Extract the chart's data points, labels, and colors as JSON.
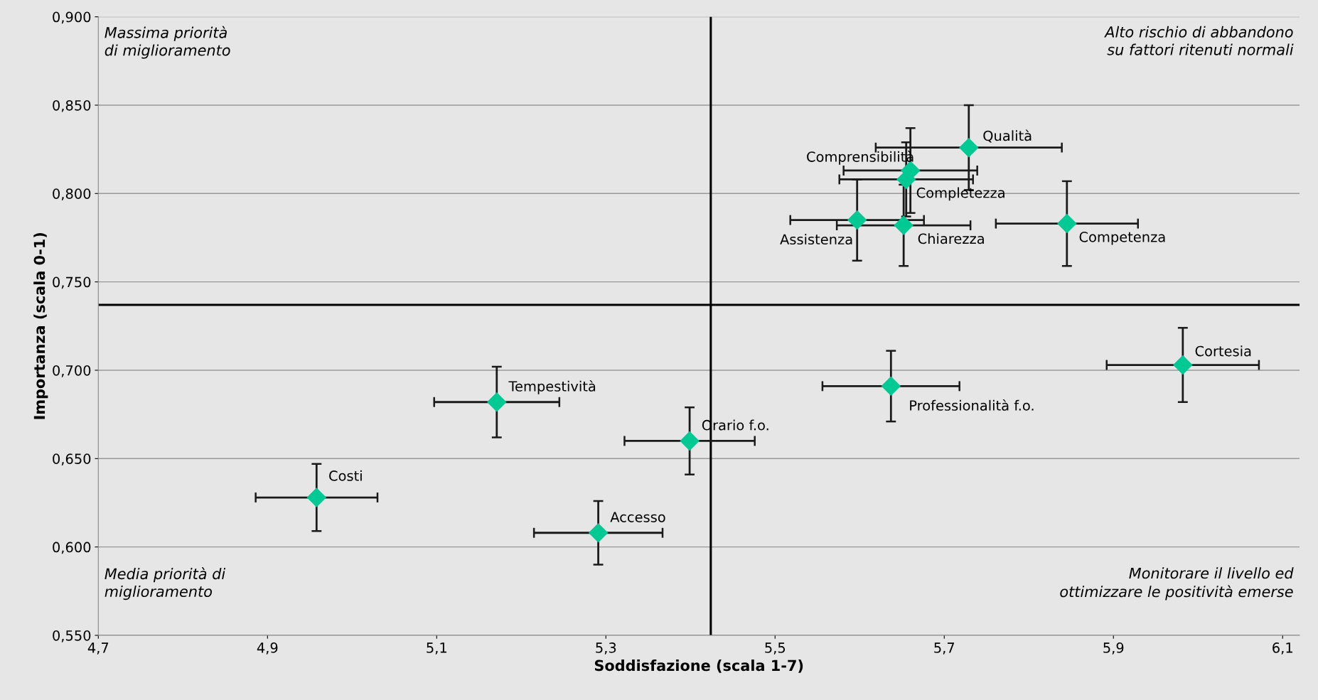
{
  "chart_data": {
    "type": "scatter",
    "xlabel": "Soddisfazione (scala 1-7)",
    "ylabel": "Importanza (scala 0-1)",
    "xlim": [
      4.7,
      6.12
    ],
    "ylim": [
      0.55,
      0.9
    ],
    "xticks": [
      {
        "value": 4.7,
        "label": "4,7"
      },
      {
        "value": 4.9,
        "label": "4,9"
      },
      {
        "value": 5.1,
        "label": "5,1"
      },
      {
        "value": 5.3,
        "label": "5,3"
      },
      {
        "value": 5.5,
        "label": "5,5"
      },
      {
        "value": 5.7,
        "label": "5,7"
      },
      {
        "value": 5.9,
        "label": "5,9"
      },
      {
        "value": 6.1,
        "label": "6,1"
      }
    ],
    "yticks": [
      {
        "value": 0.55,
        "label": "0,550"
      },
      {
        "value": 0.6,
        "label": "0,600"
      },
      {
        "value": 0.65,
        "label": "0,650"
      },
      {
        "value": 0.7,
        "label": "0,700"
      },
      {
        "value": 0.75,
        "label": "0,750"
      },
      {
        "value": 0.8,
        "label": "0,800"
      },
      {
        "value": 0.85,
        "label": "0,850"
      },
      {
        "value": 0.9,
        "label": "0,900"
      }
    ],
    "grid": "y",
    "marker": "diamond",
    "legend": false,
    "series": [
      {
        "name": "Costi",
        "color": "#00c994",
        "x": [
          4.958
        ],
        "values": [
          0.628
        ],
        "errors": [
          0.019
        ],
        "xerrors": [
          0.072
        ]
      },
      {
        "name": "Tempestività",
        "color": "#00c994",
        "x": [
          5.171
        ],
        "values": [
          0.682
        ],
        "errors": [
          0.02
        ],
        "xerrors": [
          0.074
        ]
      },
      {
        "name": "Accesso",
        "color": "#00c994",
        "x": [
          5.291
        ],
        "values": [
          0.608
        ],
        "errors": [
          0.018
        ],
        "xerrors": [
          0.076
        ]
      },
      {
        "name": "Orario f.o.",
        "color": "#00c994",
        "x": [
          5.399
        ],
        "values": [
          0.66
        ],
        "errors": [
          0.019
        ],
        "xerrors": [
          0.077
        ]
      },
      {
        "name": "Professionalità f.o.",
        "color": "#00c994",
        "x": [
          5.637
        ],
        "values": [
          0.691
        ],
        "errors": [
          0.02
        ],
        "xerrors": [
          0.081
        ]
      },
      {
        "name": "Cortesia",
        "color": "#00c994",
        "x": [
          5.982
        ],
        "values": [
          0.703
        ],
        "errors": [
          0.021
        ],
        "xerrors": [
          0.09
        ]
      },
      {
        "name": "Qualità",
        "color": "#00c994",
        "x": [
          5.729
        ],
        "values": [
          0.826
        ],
        "errors": [
          0.024
        ],
        "xerrors": [
          0.11
        ]
      },
      {
        "name": "Comprensibilità",
        "color": "#00c994",
        "x": [
          5.66
        ],
        "values": [
          0.813
        ],
        "errors": [
          0.024
        ],
        "xerrors": [
          0.079
        ]
      },
      {
        "name": "Completezza",
        "color": "#00c994",
        "x": [
          5.655
        ],
        "values": [
          0.808
        ],
        "errors": [
          0.021
        ],
        "xerrors": [
          0.079
        ]
      },
      {
        "name": "Assistenza",
        "color": "#00c994",
        "x": [
          5.597
        ],
        "values": [
          0.785
        ],
        "errors": [
          0.023
        ],
        "xerrors": [
          0.079
        ]
      },
      {
        "name": "Chiarezza",
        "color": "#00c994",
        "x": [
          5.652
        ],
        "values": [
          0.782
        ],
        "errors": [
          0.023
        ],
        "xerrors": [
          0.079
        ]
      },
      {
        "name": "Competenza",
        "color": "#00c994",
        "x": [
          5.845
        ],
        "values": [
          0.783
        ],
        "errors": [
          0.024
        ],
        "xerrors": [
          0.084
        ]
      }
    ],
    "ref_lines": [
      {
        "axis": "x",
        "value": 5.424,
        "color": "#000000"
      },
      {
        "axis": "y",
        "value": 0.737,
        "color": "#000000"
      }
    ],
    "annotations": [
      "Massima priorità\ndi miglioramento",
      "Alto rischio di abbandono\nsu fattori ritenuti normali",
      "Media priorità di\nmiglioramento",
      "Monitorare il livello ed\nottimizzare le positività emerse"
    ]
  }
}
